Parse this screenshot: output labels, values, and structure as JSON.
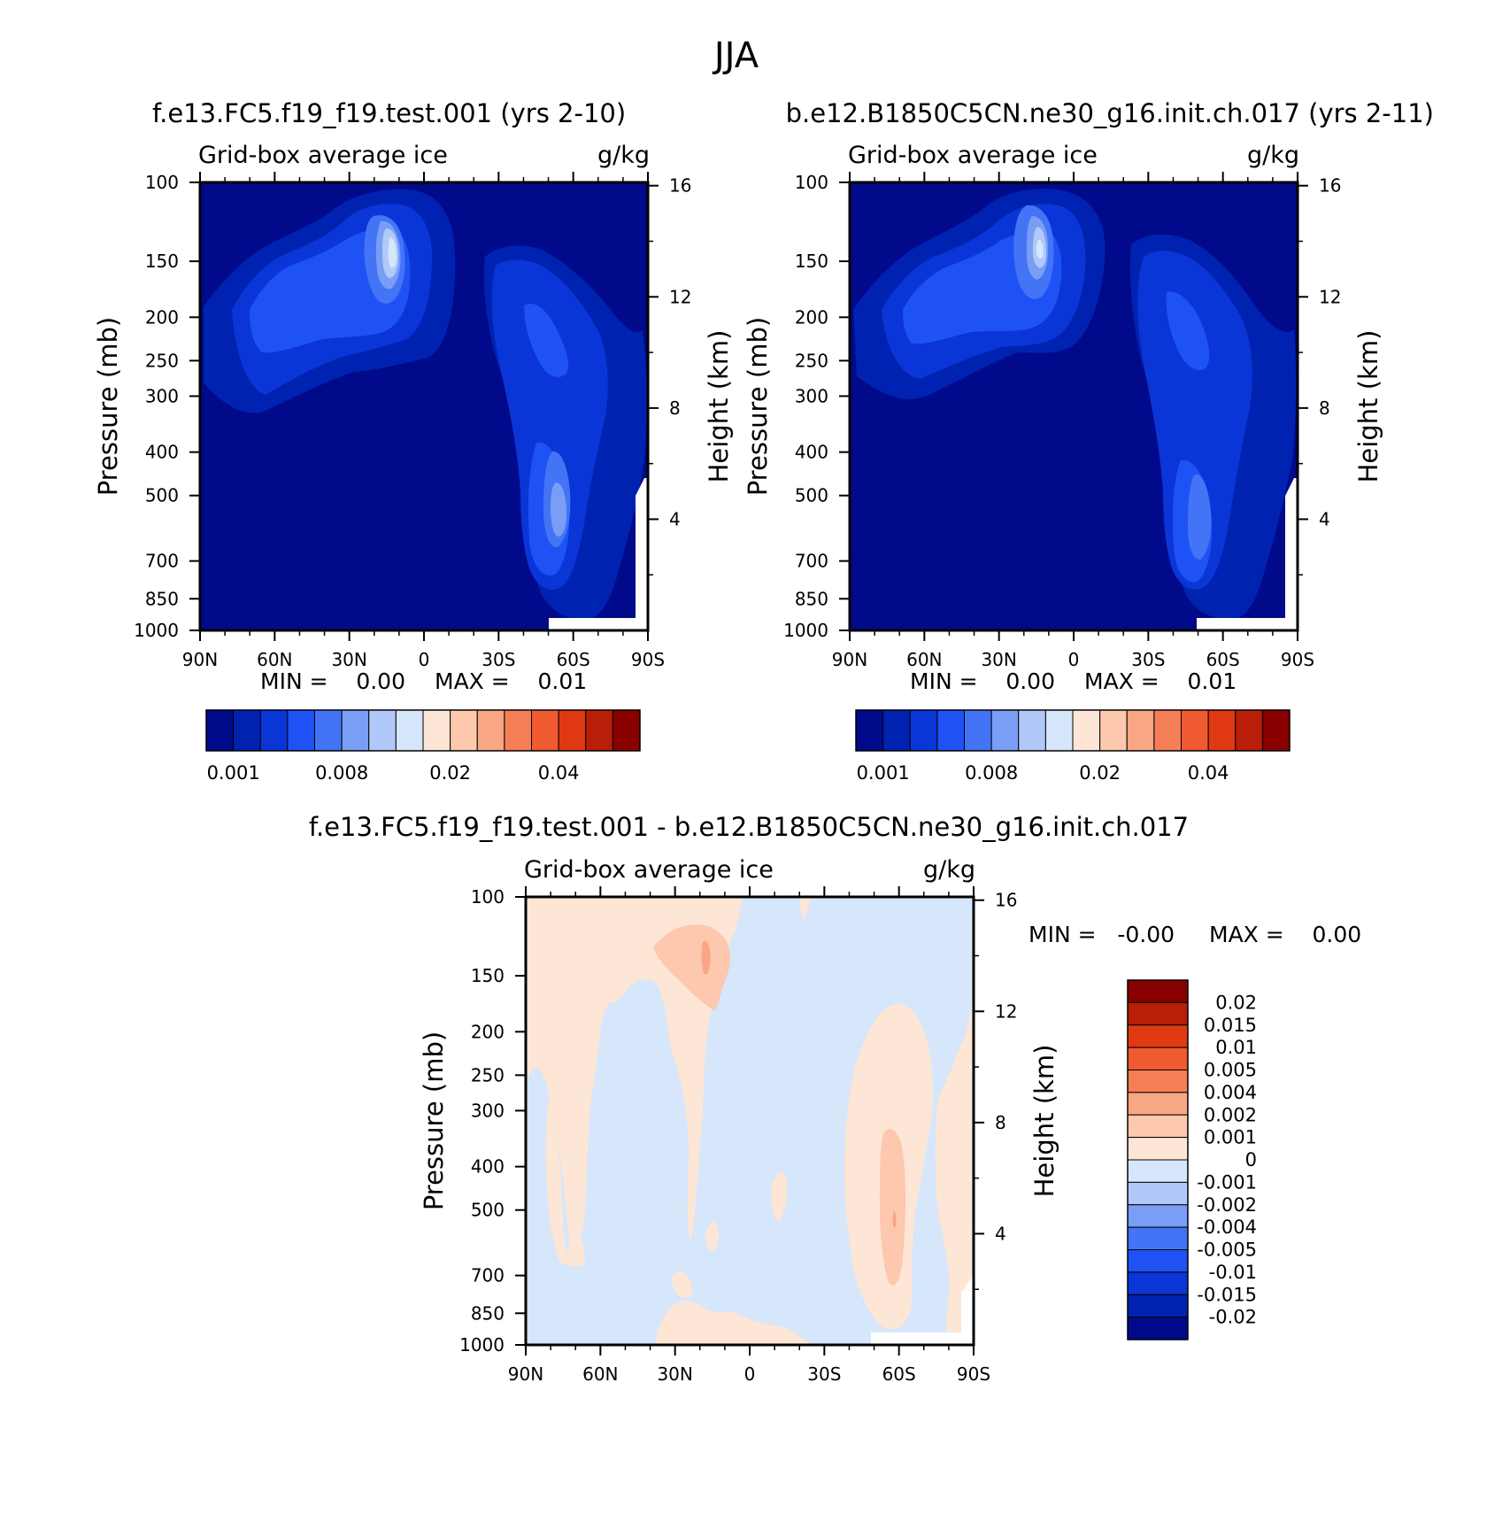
{
  "figure_title": "JJA",
  "top_title_left": "f.e13.FC5.f19_f19.test.001 (yrs 2-10)",
  "top_title_right": "b.e12.B1850C5CN.ne30_g16.init.ch.017 (yrs 2-11)",
  "diff_title": "f.e13.FC5.f19_f19.test.001 - b.e12.B1850C5CN.ne30_g16.init.ch.017",
  "chart_data": [
    {
      "type": "heatmap",
      "title": "Grid-box average ice",
      "units": "g/kg",
      "xlabel": "",
      "ylabel": "Pressure (mb)",
      "ylabel_right": "Height (km)",
      "x_ticks": [
        "90N",
        "60N",
        "30N",
        "0",
        "30S",
        "60S",
        "90S"
      ],
      "x_values": [
        90,
        60,
        30,
        0,
        -30,
        -60,
        -90
      ],
      "y_ticks": [
        100,
        150,
        200,
        250,
        300,
        400,
        500,
        700,
        850,
        1000
      ],
      "y_ticks_right": [
        16,
        12,
        8,
        4
      ],
      "y_scale": "log",
      "ylim": [
        100,
        1000
      ],
      "min_label": "MIN = 0.00",
      "max_label": "MAX = 0.01",
      "colorbar_orientation": "horizontal",
      "colorbar_tick_labels": [
        "0.001",
        "0.008",
        "0.02",
        "0.04"
      ]
    },
    {
      "type": "heatmap",
      "title": "Grid-box average ice",
      "units": "g/kg",
      "xlabel": "",
      "ylabel": "Pressure (mb)",
      "ylabel_right": "Height (km)",
      "x_ticks": [
        "90N",
        "60N",
        "30N",
        "0",
        "30S",
        "60S",
        "90S"
      ],
      "x_values": [
        90,
        60,
        30,
        0,
        -30,
        -60,
        -90
      ],
      "y_ticks": [
        100,
        150,
        200,
        250,
        300,
        400,
        500,
        700,
        850,
        1000
      ],
      "y_ticks_right": [
        16,
        12,
        8,
        4
      ],
      "y_scale": "log",
      "ylim": [
        100,
        1000
      ],
      "min_label": "MIN = 0.00",
      "max_label": "MAX = 0.01",
      "colorbar_orientation": "horizontal",
      "colorbar_tick_labels": [
        "0.001",
        "0.008",
        "0.02",
        "0.04"
      ]
    },
    {
      "type": "heatmap",
      "title": "Grid-box average ice",
      "units": "g/kg",
      "xlabel": "",
      "ylabel": "Pressure (mb)",
      "ylabel_right": "Height (km)",
      "x_ticks": [
        "90N",
        "60N",
        "30N",
        "0",
        "30S",
        "60S",
        "90S"
      ],
      "x_values": [
        90,
        60,
        30,
        0,
        -30,
        -60,
        -90
      ],
      "y_ticks": [
        100,
        150,
        200,
        250,
        300,
        400,
        500,
        700,
        850,
        1000
      ],
      "y_ticks_right": [
        16,
        12,
        8,
        4
      ],
      "y_scale": "log",
      "ylim": [
        100,
        1000
      ],
      "min_label": "MIN = -0.00",
      "max_label": "MAX = 0.00",
      "colorbar_orientation": "vertical",
      "colorbar_tick_labels": [
        "0.02",
        "0.015",
        "0.01",
        "0.005",
        "0.004",
        "0.002",
        "0.001",
        "0",
        "-0.001",
        "-0.002",
        "-0.004",
        "-0.005",
        "-0.01",
        "-0.015",
        "-0.02"
      ]
    }
  ],
  "colors": {
    "abs_palette": [
      "#000a8a",
      "#0022b0",
      "#0a36d8",
      "#1f52f5",
      "#4474f6",
      "#7a9ef6",
      "#b1c8fa",
      "#d6e6fb",
      "#fde6d6",
      "#fdc8ae",
      "#f9a685",
      "#f57e56",
      "#f05a30",
      "#e13a12",
      "#b81e08",
      "#890000"
    ],
    "diff_palette": [
      "#000a8a",
      "#0022b0",
      "#0a36d8",
      "#1f52f5",
      "#4474f6",
      "#7a9ef6",
      "#b1c8fa",
      "#d6e6fb",
      "#fde6d6",
      "#fdc8ae",
      "#f9a685",
      "#f57e56",
      "#f05a30",
      "#e13a12",
      "#b81e08",
      "#890000"
    ]
  }
}
